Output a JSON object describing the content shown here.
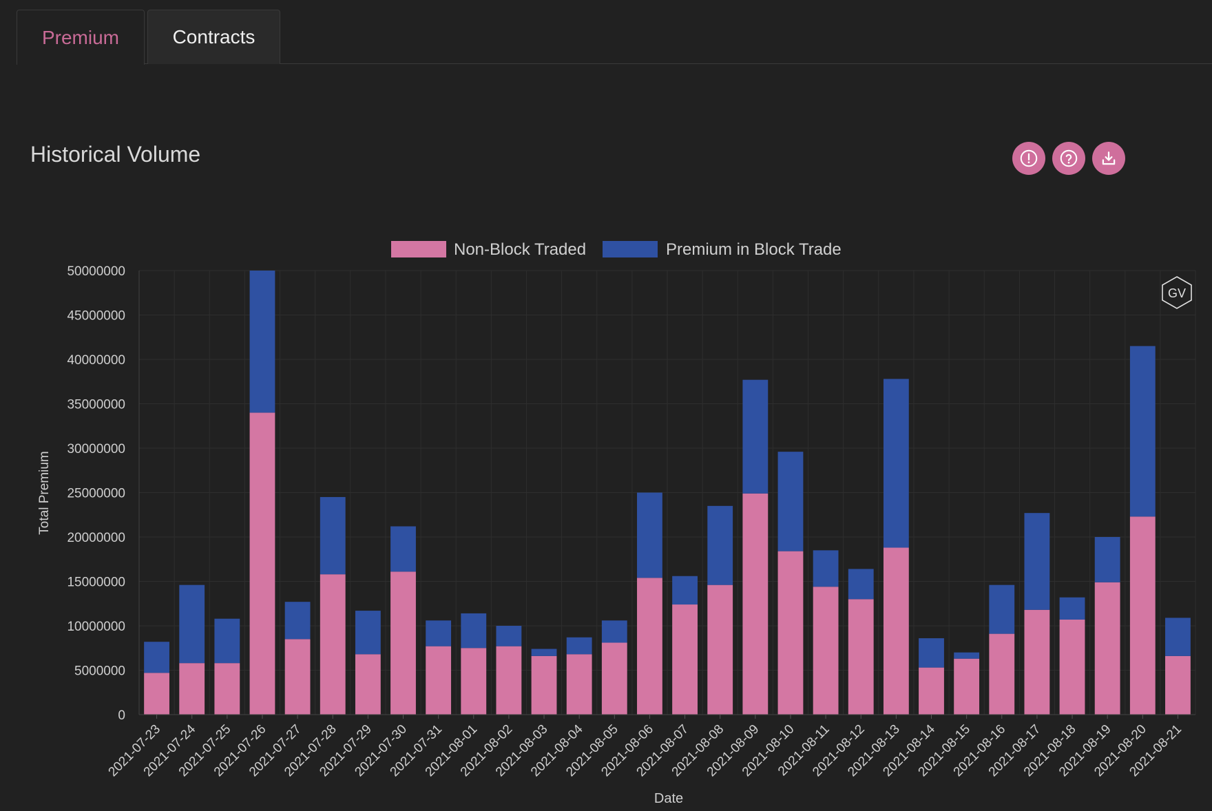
{
  "tabs": [
    {
      "label": "Premium",
      "active": true
    },
    {
      "label": "Contracts",
      "active": false
    }
  ],
  "section": {
    "title": "Historical Volume",
    "actions": [
      {
        "icon": "alert-circle-icon"
      },
      {
        "icon": "help-circle-icon"
      },
      {
        "icon": "download-icon"
      }
    ]
  },
  "watermark": "GV",
  "colors": {
    "accent": "#cf6f9c",
    "non_block": "#d477a3",
    "block": "#2f51a2"
  },
  "chart_data": {
    "type": "bar",
    "stacked": true,
    "xlabel": "Date",
    "ylabel": "Total Premium",
    "ylim": [
      0,
      50000000
    ],
    "yticks": [
      0,
      5000000,
      10000000,
      15000000,
      20000000,
      25000000,
      30000000,
      35000000,
      40000000,
      45000000,
      50000000
    ],
    "legend_position": "top-center",
    "grid": true,
    "categories": [
      "2021-07-23",
      "2021-07-24",
      "2021-07-25",
      "2021-07-26",
      "2021-07-27",
      "2021-07-28",
      "2021-07-29",
      "2021-07-30",
      "2021-07-31",
      "2021-08-01",
      "2021-08-02",
      "2021-08-03",
      "2021-08-04",
      "2021-08-05",
      "2021-08-06",
      "2021-08-07",
      "2021-08-08",
      "2021-08-09",
      "2021-08-10",
      "2021-08-11",
      "2021-08-12",
      "2021-08-13",
      "2021-08-14",
      "2021-08-15",
      "2021-08-16",
      "2021-08-17",
      "2021-08-18",
      "2021-08-19",
      "2021-08-20",
      "2021-08-21"
    ],
    "series": [
      {
        "name": "Non-Block Traded",
        "color": "#d477a3",
        "values": [
          4700000,
          5800000,
          5800000,
          34000000,
          8500000,
          15800000,
          6800000,
          16100000,
          7700000,
          7500000,
          7700000,
          6600000,
          6800000,
          8100000,
          15400000,
          12400000,
          14600000,
          24900000,
          18400000,
          14400000,
          13000000,
          18800000,
          5300000,
          6300000,
          9100000,
          11800000,
          10700000,
          14900000,
          22300000,
          6600000
        ]
      },
      {
        "name": "Premium in Block Trade",
        "color": "#2f51a2",
        "values": [
          3500000,
          8800000,
          5000000,
          16000000,
          4200000,
          8700000,
          4900000,
          5100000,
          2900000,
          3900000,
          2300000,
          800000,
          1900000,
          2500000,
          9600000,
          3200000,
          8900000,
          12800000,
          11200000,
          4100000,
          3400000,
          19000000,
          3300000,
          700000,
          5500000,
          10900000,
          2500000,
          5100000,
          19200000,
          4300000
        ]
      }
    ]
  }
}
